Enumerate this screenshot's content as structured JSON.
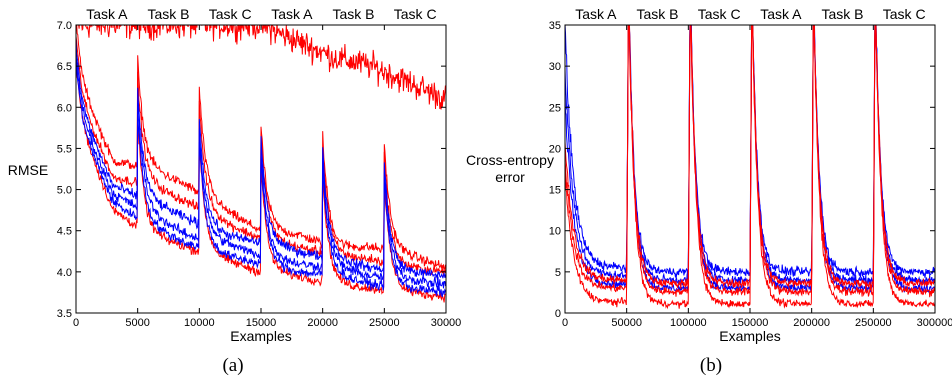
{
  "chart_data": [
    {
      "type": "line",
      "panel_label": "(a)",
      "xlabel": "Examples",
      "ylabel": "RMSE",
      "xlim": [
        0,
        30000
      ],
      "ylim": [
        3.5,
        7.0
      ],
      "xticks": [
        "0",
        "5000",
        "10000",
        "15000",
        "20000",
        "25000",
        "30000"
      ],
      "yticks": [
        "3.5",
        "4.0",
        "4.5",
        "5.0",
        "5.5",
        "6.0",
        "6.5",
        "7.0"
      ],
      "task_labels": [
        "Task A",
        "Task B",
        "Task C",
        "Task A",
        "Task B",
        "Task C"
      ],
      "task_boundaries": [
        0,
        5000,
        10000,
        15000,
        20000,
        25000,
        30000
      ],
      "grid": false,
      "legend": "none",
      "series": [
        {
          "color": "#ff0000",
          "values": [
            7.0,
            7.0,
            7.0,
            7.0,
            7.0,
            7.0,
            6.8,
            6.6,
            6.5,
            6.3,
            6.1
          ],
          "x": [
            0,
            3000,
            6000,
            9000,
            12000,
            15000,
            18000,
            21000,
            24000,
            27000,
            30000
          ]
        },
        {
          "color": "#ff0000",
          "values": [
            6.4,
            5.35,
            5.25,
            5.05,
            4.75,
            4.5,
            4.45,
            4.3,
            4.3,
            4.2,
            4.05
          ],
          "x": [
            0,
            3000,
            6000,
            9000,
            12000,
            15000,
            18000,
            21000,
            24000,
            27000,
            30000
          ]
        },
        {
          "color": "#ff0000",
          "values": [
            6.2,
            5.15,
            5.05,
            4.85,
            4.6,
            4.4,
            4.3,
            4.2,
            4.15,
            4.05,
            4.0
          ],
          "x": [
            0,
            3000,
            6000,
            9000,
            12000,
            15000,
            18000,
            21000,
            24000,
            27000,
            30000
          ]
        },
        {
          "color": "#ff0000",
          "values": [
            5.9,
            4.75,
            4.45,
            4.3,
            4.15,
            4.0,
            3.95,
            3.85,
            3.8,
            3.75,
            3.7
          ],
          "x": [
            0,
            3000,
            6000,
            9000,
            12000,
            15000,
            18000,
            21000,
            24000,
            27000,
            30000
          ]
        },
        {
          "color": "#0000ff",
          "values": [
            6.1,
            5.05,
            4.85,
            4.65,
            4.45,
            4.35,
            4.25,
            4.15,
            4.05,
            4.0,
            3.95
          ],
          "x": [
            0,
            3000,
            6000,
            9000,
            12000,
            15000,
            18000,
            21000,
            24000,
            27000,
            30000
          ]
        },
        {
          "color": "#0000ff",
          "values": [
            6.0,
            4.95,
            4.7,
            4.45,
            4.35,
            4.2,
            4.1,
            4.05,
            3.95,
            3.9,
            3.85
          ],
          "x": [
            0,
            3000,
            6000,
            9000,
            12000,
            15000,
            18000,
            21000,
            24000,
            27000,
            30000
          ]
        },
        {
          "color": "#0000ff",
          "values": [
            5.9,
            4.85,
            4.55,
            4.35,
            4.2,
            4.1,
            4.0,
            3.95,
            3.85,
            3.8,
            3.75
          ],
          "x": [
            0,
            3000,
            6000,
            9000,
            12000,
            15000,
            18000,
            21000,
            24000,
            27000,
            30000
          ]
        }
      ]
    },
    {
      "type": "line",
      "panel_label": "(b)",
      "xlabel": "Examples",
      "ylabel": "Cross-entropy\nerror",
      "xlim": [
        0,
        300000
      ],
      "ylim": [
        0,
        35
      ],
      "xticks": [
        "0",
        "50000",
        "100000",
        "150000",
        "200000",
        "250000",
        "300000"
      ],
      "yticks": [
        "0",
        "5",
        "10",
        "15",
        "20",
        "25",
        "30",
        "35"
      ],
      "task_labels": [
        "Task A",
        "Task B",
        "Task C",
        "Task A",
        "Task B",
        "Task C"
      ],
      "task_boundaries": [
        0,
        50000,
        100000,
        150000,
        200000,
        250000,
        300000
      ],
      "grid": false,
      "legend": "none",
      "series": [
        {
          "color": "#0000ff",
          "peak": 35,
          "floor": 5.0,
          "first_floor": 5.5,
          "first_start": 23
        },
        {
          "color": "#0000ff",
          "peak": 35,
          "floor": 4.0,
          "first_floor": 4.5,
          "first_start": 18
        },
        {
          "color": "#0000ff",
          "peak": 35,
          "floor": 3.0,
          "first_floor": 3.5,
          "first_start": 14
        },
        {
          "color": "#ff0000",
          "peak": 35,
          "floor": 3.6,
          "first_floor": 4.0,
          "first_start": 9
        },
        {
          "color": "#ff0000",
          "peak": 35,
          "floor": 2.6,
          "first_floor": 3.0,
          "first_start": 7
        },
        {
          "color": "#ff0000",
          "peak": 35,
          "floor": 1.1,
          "first_floor": 1.3,
          "first_start": 5
        }
      ]
    }
  ]
}
